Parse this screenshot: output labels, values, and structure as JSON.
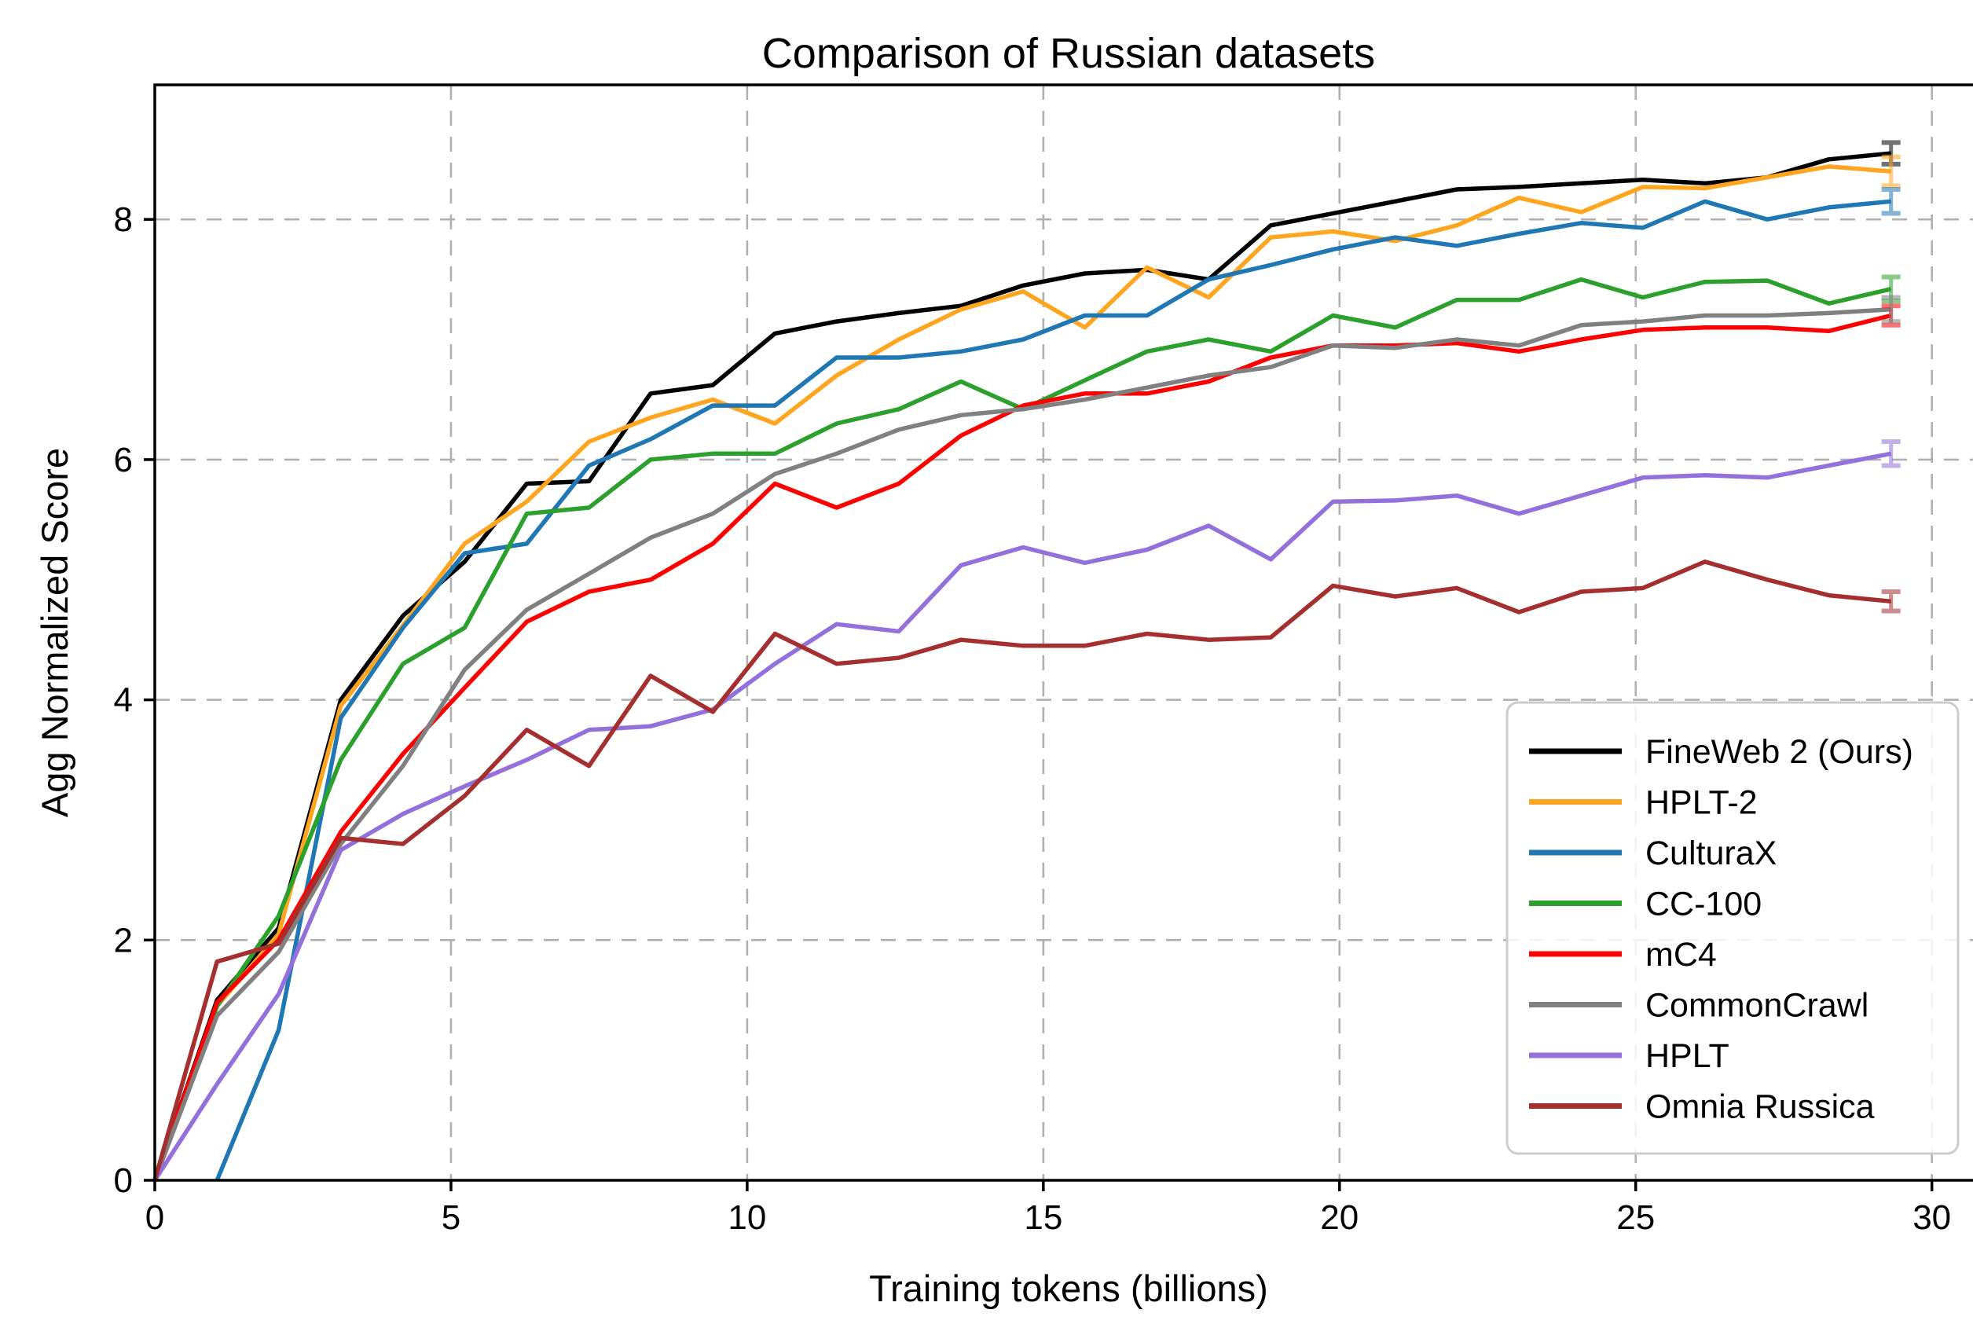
{
  "chart_data": {
    "type": "line",
    "title": "Comparison of Russian datasets",
    "xlabel": "Training tokens (billions)",
    "ylabel": "Agg Normalized Score",
    "xlim": [
      0,
      30.84
    ],
    "ylim": [
      0,
      9.12
    ],
    "xticks": [
      0,
      5,
      10,
      15,
      20,
      25,
      30
    ],
    "yticks": [
      0,
      2,
      4,
      6,
      8
    ],
    "grid": true,
    "grid_color": "#b0b0b0",
    "legend_position": "lower right",
    "x": [
      0,
      1.05,
      2.09,
      3.14,
      4.19,
      5.23,
      6.28,
      7.33,
      8.37,
      9.42,
      10.47,
      11.51,
      12.56,
      13.61,
      14.66,
      15.7,
      16.75,
      17.79,
      18.84,
      19.89,
      20.94,
      21.98,
      23.03,
      24.08,
      25.12,
      26.17,
      27.22,
      28.26,
      29.31
    ],
    "series": [
      {
        "name": "FineWeb 2 (Ours)",
        "color": "#000000",
        "final_error": 0.09,
        "values": [
          0,
          1.5,
          2.1,
          4.0,
          4.7,
          5.15,
          5.8,
          5.82,
          6.55,
          6.62,
          7.05,
          7.15,
          7.22,
          7.28,
          7.45,
          7.55,
          7.58,
          7.5,
          7.95,
          8.05,
          8.15,
          8.25,
          8.27,
          8.3,
          8.33,
          8.3,
          8.35,
          8.5,
          8.55
        ]
      },
      {
        "name": "HPLT-2",
        "color": "#ffa520",
        "final_error": 0.12,
        "values": [
          0,
          1.45,
          2.05,
          3.95,
          4.62,
          5.3,
          5.65,
          6.15,
          6.35,
          6.5,
          6.3,
          6.7,
          7.0,
          7.25,
          7.4,
          7.1,
          7.6,
          7.35,
          7.85,
          7.9,
          7.82,
          7.95,
          8.18,
          8.06,
          8.27,
          8.26,
          8.35,
          8.44,
          8.4
        ]
      },
      {
        "name": "CulturaX",
        "color": "#1f77b4",
        "final_error": 0.1,
        "values": [
          null,
          0,
          1.25,
          3.85,
          4.6,
          5.22,
          5.3,
          5.95,
          6.17,
          6.45,
          6.45,
          6.85,
          6.85,
          6.9,
          7.0,
          7.2,
          7.2,
          7.5,
          7.62,
          7.75,
          7.85,
          7.78,
          7.88,
          7.97,
          7.93,
          8.15,
          8.0,
          8.1,
          8.15
        ]
      },
      {
        "name": "CC-100",
        "color": "#2ca02c",
        "final_error": 0.1,
        "values": [
          0,
          1.45,
          2.2,
          3.5,
          4.3,
          4.6,
          5.55,
          5.6,
          6.0,
          6.05,
          6.05,
          6.3,
          6.42,
          6.65,
          6.42,
          6.66,
          6.9,
          7.0,
          6.9,
          7.2,
          7.1,
          7.33,
          7.33,
          7.5,
          7.35,
          7.48,
          7.49,
          7.3,
          7.42
        ]
      },
      {
        "name": "mC4",
        "color": "#ff0000",
        "final_error": 0.08,
        "values": [
          0,
          1.48,
          2.0,
          2.9,
          3.55,
          4.1,
          4.65,
          4.9,
          5.0,
          5.3,
          5.8,
          5.6,
          5.8,
          6.2,
          6.45,
          6.55,
          6.55,
          6.65,
          6.85,
          6.95,
          6.95,
          6.97,
          6.9,
          7.0,
          7.08,
          7.1,
          7.1,
          7.07,
          7.2
        ]
      },
      {
        "name": "CommonCrawl",
        "color": "#808080",
        "final_error": 0.1,
        "values": [
          0,
          1.37,
          1.9,
          2.8,
          3.45,
          4.25,
          4.75,
          5.05,
          5.35,
          5.55,
          5.88,
          6.05,
          6.25,
          6.37,
          6.42,
          6.5,
          6.6,
          6.7,
          6.77,
          6.95,
          6.93,
          7.0,
          6.95,
          7.12,
          7.15,
          7.2,
          7.2,
          7.22,
          7.25
        ]
      },
      {
        "name": "HPLT",
        "color": "#9370db",
        "final_error": 0.1,
        "values": [
          0,
          0.8,
          1.55,
          2.75,
          3.05,
          3.28,
          3.5,
          3.75,
          3.78,
          3.92,
          4.3,
          4.63,
          4.57,
          5.12,
          5.27,
          5.14,
          5.25,
          5.45,
          5.17,
          5.65,
          5.66,
          5.7,
          5.55,
          5.7,
          5.85,
          5.87,
          5.85,
          5.95,
          6.05
        ]
      },
      {
        "name": "Omnia Russica",
        "color": "#a52f2f",
        "final_error": 0.08,
        "values": [
          0,
          1.82,
          1.97,
          2.85,
          2.8,
          3.2,
          3.75,
          3.45,
          4.2,
          3.9,
          4.55,
          4.3,
          4.35,
          4.5,
          4.45,
          4.45,
          4.55,
          4.5,
          4.52,
          4.95,
          4.86,
          4.93,
          4.73,
          4.9,
          4.93,
          5.15,
          5.0,
          4.87,
          4.82
        ]
      }
    ]
  }
}
